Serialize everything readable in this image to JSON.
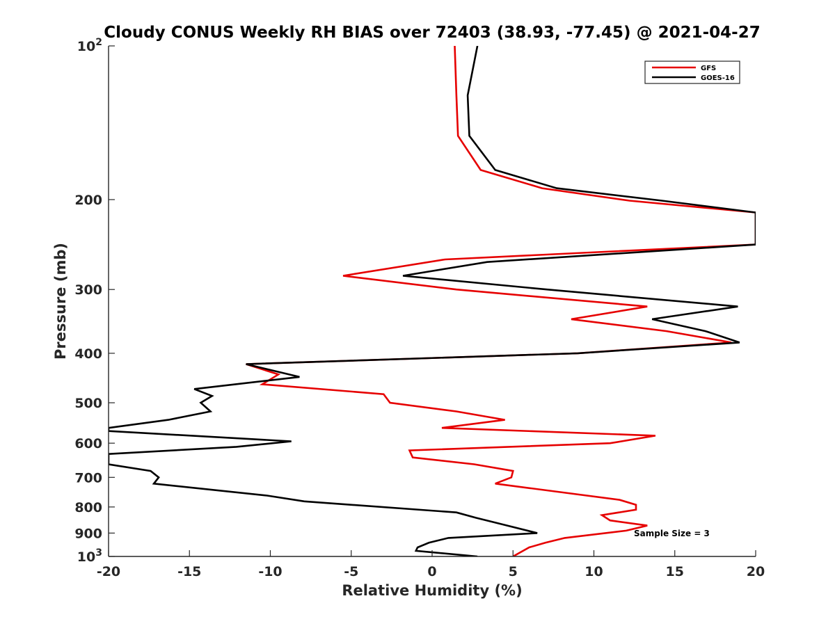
{
  "chart_data": {
    "type": "line",
    "title": "Cloudy CONUS Weekly RH BIAS over 72403 (38.93, -77.45) @ 2021-04-27",
    "xlabel": "Relative Humidity (%)",
    "ylabel": "Pressure (mb)",
    "xlim": [
      -20,
      20
    ],
    "ylim": [
      100,
      1000
    ],
    "yscale": "log",
    "y_reversed": true,
    "x_ticks": [
      -20,
      -15,
      -10,
      -5,
      0,
      5,
      10,
      15,
      20
    ],
    "x_tick_labels": [
      "-20",
      "-15",
      "-10",
      "-5",
      "0",
      "5",
      "10",
      "15",
      "20"
    ],
    "y_ticks": [
      100,
      200,
      300,
      400,
      500,
      600,
      700,
      800,
      900,
      1000
    ],
    "y_tick_labels": [
      {
        "base": "10",
        "exp": "2"
      },
      {
        "base": "200",
        "exp": ""
      },
      {
        "base": "300",
        "exp": ""
      },
      {
        "base": "400",
        "exp": ""
      },
      {
        "base": "500",
        "exp": ""
      },
      {
        "base": "600",
        "exp": ""
      },
      {
        "base": "700",
        "exp": ""
      },
      {
        "base": "800",
        "exp": ""
      },
      {
        "base": "900",
        "exp": ""
      },
      {
        "base": "10",
        "exp": "3"
      }
    ],
    "grid": false,
    "legend_position": "top-right",
    "annotation": "Sample Size = 3",
    "series": [
      {
        "name": "GFS",
        "color": "#e60000",
        "points": [
          [
            1.4,
            100
          ],
          [
            1.5,
            125
          ],
          [
            1.6,
            150
          ],
          [
            3.0,
            175
          ],
          [
            6.8,
            190
          ],
          [
            12.2,
            201
          ],
          [
            20,
            212
          ],
          [
            20,
            245
          ],
          [
            0.8,
            262
          ],
          [
            -5.5,
            282
          ],
          [
            1.5,
            300
          ],
          [
            13.3,
            324
          ],
          [
            8.6,
            343
          ],
          [
            14.5,
            362
          ],
          [
            18.5,
            381
          ],
          [
            9,
            400
          ],
          [
            -11.5,
            420
          ],
          [
            -9.5,
            440
          ],
          [
            -10.5,
            460
          ],
          [
            -3.0,
            481
          ],
          [
            -2.6,
            500
          ],
          [
            1.5,
            520
          ],
          [
            4.5,
            540
          ],
          [
            0.6,
            560
          ],
          [
            13.8,
            580
          ],
          [
            11.0,
            600
          ],
          [
            -1.4,
            620
          ],
          [
            -1.2,
            640
          ],
          [
            2.6,
            660
          ],
          [
            5.0,
            680
          ],
          [
            4.9,
            700
          ],
          [
            3.9,
            720
          ],
          [
            11.6,
            775
          ],
          [
            12.6,
            792
          ],
          [
            12.6,
            810
          ],
          [
            10.5,
            830
          ],
          [
            11.0,
            850
          ],
          [
            13.3,
            870
          ],
          [
            12.0,
            890
          ],
          [
            8.2,
            920
          ],
          [
            7.0,
            940
          ],
          [
            6.0,
            960
          ],
          [
            5.0,
            1000
          ]
        ]
      },
      {
        "name": "GOES-16",
        "color": "#000000",
        "points": [
          [
            2.8,
            100
          ],
          [
            2.2,
            125
          ],
          [
            2.3,
            150
          ],
          [
            3.9,
            175
          ],
          [
            7.7,
            190
          ],
          [
            14.2,
            201
          ],
          [
            20,
            212
          ],
          [
            20,
            245
          ],
          [
            3.4,
            265
          ],
          [
            -1.8,
            282
          ],
          [
            7.1,
            300
          ],
          [
            18.9,
            324
          ],
          [
            13.6,
            343
          ],
          [
            16.9,
            362
          ],
          [
            19.0,
            381
          ],
          [
            9,
            400
          ],
          [
            -11.5,
            420
          ],
          [
            -8.2,
            445
          ],
          [
            -14.7,
            470
          ],
          [
            -13.6,
            485
          ],
          [
            -14.3,
            500
          ],
          [
            -13.7,
            520
          ],
          [
            -16.3,
            540
          ],
          [
            -20,
            560
          ],
          [
            -20,
            568
          ],
          [
            -8.7,
            595
          ],
          [
            -12.1,
            610
          ],
          [
            -20,
            630
          ],
          [
            -20,
            660
          ],
          [
            -17.4,
            680
          ],
          [
            -16.9,
            700
          ],
          [
            -17.2,
            720
          ],
          [
            -10.2,
            760
          ],
          [
            -7.9,
            780
          ],
          [
            1.5,
            820
          ],
          [
            2.7,
            840
          ],
          [
            4.0,
            860
          ],
          [
            6.5,
            900
          ],
          [
            1.0,
            920
          ],
          [
            -0.2,
            940
          ],
          [
            -0.9,
            960
          ],
          [
            -1.0,
            975
          ],
          [
            2.8,
            1000
          ]
        ]
      }
    ]
  }
}
